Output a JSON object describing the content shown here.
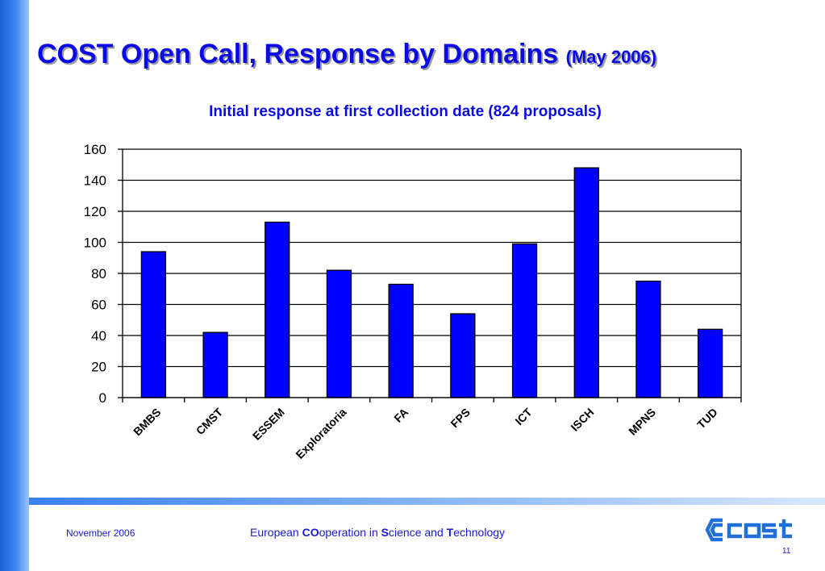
{
  "slide": {
    "title": "COST Open Call, Response by Domains",
    "title_date": "(May 2006)"
  },
  "footer": {
    "date": "November 2006",
    "org_parts": [
      {
        "text": "European ",
        "bold": false
      },
      {
        "text": "CO",
        "bold": true
      },
      {
        "text": "operation in ",
        "bold": false
      },
      {
        "text": "S",
        "bold": true
      },
      {
        "text": "cience and ",
        "bold": false
      },
      {
        "text": "T",
        "bold": true
      },
      {
        "text": "echnology",
        "bold": false
      }
    ],
    "page_number": "11",
    "logo": "cost-logo"
  },
  "colors": {
    "title": "#0a0ae6",
    "bar_fill": "#0000ff",
    "bar_stroke": "#000000",
    "accent": "#3a80ee"
  },
  "chart_data": {
    "type": "bar",
    "title": "Initial response at first collection date (824 proposals)",
    "categories": [
      "BMBS",
      "CMST",
      "ESSEM",
      "Exploratoria",
      "FA",
      "FPS",
      "ICT",
      "ISCH",
      "MPNS",
      "TUD"
    ],
    "values": [
      94,
      42,
      113,
      82,
      73,
      54,
      99,
      148,
      75,
      44
    ],
    "ylim": [
      0,
      160
    ],
    "yticks": [
      0,
      20,
      40,
      60,
      80,
      100,
      120,
      140,
      160
    ],
    "xlabel": "",
    "ylabel": "",
    "grid": true,
    "legend": "none"
  }
}
